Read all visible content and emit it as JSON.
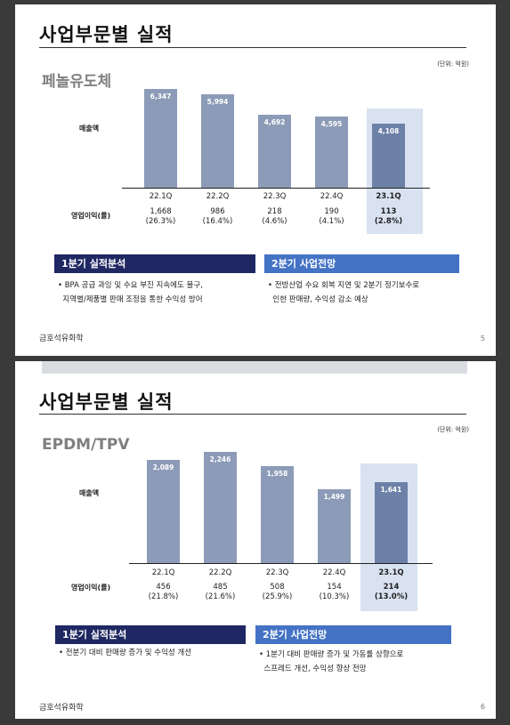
{
  "slides": [
    {
      "title": "사업부문별 실적",
      "unit": "(단위: 억원)",
      "subtitle": "페놀유도체",
      "ylabel": "매출액",
      "oplabel": "영업이익(률)",
      "box1_title": "1분기 실적분석",
      "box1_text": "• BPA 공급 과잉 및 수요 부진 지속에도 불구,\n  지역별/제품별 판매 조정을 통한 수익성 방어",
      "box2_title": "2분기 사업전망",
      "box2_text": "• 전방산업 수요 회복 지연 및 2분기 정기보수로\n  인한 판매량, 수익성 감소 예상",
      "footer": "금호석유화학",
      "page": "5"
    },
    {
      "title": "사업부문별 실적",
      "unit": "(단위: 억원)",
      "subtitle": "EPDM/TPV",
      "ylabel": "매출액",
      "oplabel": "영업이익(률)",
      "box1_title": "1분기 실적분석",
      "box1_text": "• 전분기 대비 판매량 증가 및 수익성 개선",
      "box2_title": "2분기 사업전망",
      "box2_text": "• 1분기 대비 판매량 증가 및 가동률 상향으로\n  스프레드 개선, 수익성 향상 전망",
      "footer": "금호석유화학",
      "page": "6"
    }
  ],
  "chart_data": [
    {
      "type": "bar",
      "categories": [
        "22.1Q",
        "22.2Q",
        "22.3Q",
        "22.4Q",
        "23.1Q"
      ],
      "values": [
        6347,
        5994,
        4692,
        4595,
        4108
      ],
      "value_labels": [
        "6,347",
        "5,994",
        "4,692",
        "4,595",
        "4,108"
      ],
      "op_values": [
        "1,668",
        "986",
        "218",
        "190",
        "113"
      ],
      "op_rates": [
        "(26.3%)",
        "(16.4%)",
        "(4.6%)",
        "(4.1%)",
        "(2.8%)"
      ],
      "highlight_index": 4,
      "highlight_color": "#d8e2f1",
      "bar_color": "#8c9bb7",
      "highlight_bar_color": "#6d80a7"
    },
    {
      "type": "bar",
      "categories": [
        "22.1Q",
        "22.2Q",
        "22.3Q",
        "22.4Q",
        "23.1Q"
      ],
      "values": [
        2089,
        2246,
        1958,
        1499,
        1641
      ],
      "value_labels": [
        "2,089",
        "2,246",
        "1,958",
        "1,499",
        "1,641"
      ],
      "op_values": [
        "456",
        "485",
        "508",
        "154",
        "214"
      ],
      "op_rates": [
        "(21.8%)",
        "(21.6%)",
        "(25.9%)",
        "(10.3%)",
        "(13.0%)"
      ],
      "highlight_index": 4,
      "highlight_color": "#d8e2f1",
      "bar_color": "#8c9bb7",
      "highlight_bar_color": "#6d80a7"
    }
  ]
}
